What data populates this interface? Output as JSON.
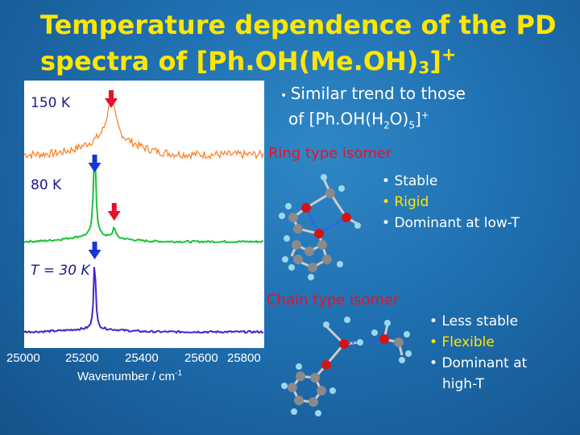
{
  "title": {
    "line1": "Temperature dependence of the PD",
    "line2_pre": "spectra of [Ph.OH(Me.OH)",
    "line2_sub": "3",
    "line2_post": "]",
    "line2_sup": "+"
  },
  "spectrum_labels": {
    "t150": "150 K",
    "t80": "80 K",
    "t30": "T = 30 K"
  },
  "note": {
    "line1": "Similar trend to those",
    "line2_pre": "of [Ph.OH(H",
    "line2_sub1": "2",
    "line2_mid": "O)",
    "line2_sub2": "5",
    "line2_post": "]",
    "line2_sup": "+"
  },
  "ring": {
    "heading": "Ring type isomer",
    "items": [
      "Stable",
      "Rigid",
      "Dominant at low-T"
    ]
  },
  "chain": {
    "heading": "Chain type isomer",
    "items": [
      "Less stable",
      "Flexible",
      "Dominant at"
    ],
    "cont": "high-T"
  },
  "colors": {
    "title": "#ffe600",
    "trace_150": "#ff7a1a",
    "trace_80": "#1fc23a",
    "trace_30": "#4b1fd0",
    "red_arrow": "#e8102a",
    "blue_arrow": "#1736d8",
    "heading": "#e8102a",
    "oxygen": "#d41414",
    "carbon": "#8a8a8a",
    "hydrogen": "#9ad8ee"
  },
  "chart_data": {
    "type": "line",
    "xlabel": "Wavenumber / cm-1",
    "x_ticks": [
      "25000",
      "25200",
      "25400",
      "25600",
      "25800"
    ],
    "xlim": [
      25000,
      25800
    ],
    "series": [
      {
        "name": "150 K",
        "peaks": [
          {
            "x": 25290,
            "rel_height": 0.7
          }
        ]
      },
      {
        "name": "80 K",
        "peaks": [
          {
            "x": 25235,
            "rel_height": 1.0
          },
          {
            "x": 25300,
            "rel_height": 0.12
          }
        ]
      },
      {
        "name": "T = 30 K",
        "peaks": [
          {
            "x": 25235,
            "rel_height": 1.0
          }
        ]
      }
    ],
    "markers": [
      {
        "color": "red",
        "x": 25290,
        "trace": "150 K"
      },
      {
        "color": "blue",
        "x": 25235,
        "trace": "80 K"
      },
      {
        "color": "red",
        "x": 25300,
        "trace": "80 K"
      },
      {
        "color": "blue",
        "x": 25235,
        "trace": "T = 30 K"
      }
    ]
  }
}
